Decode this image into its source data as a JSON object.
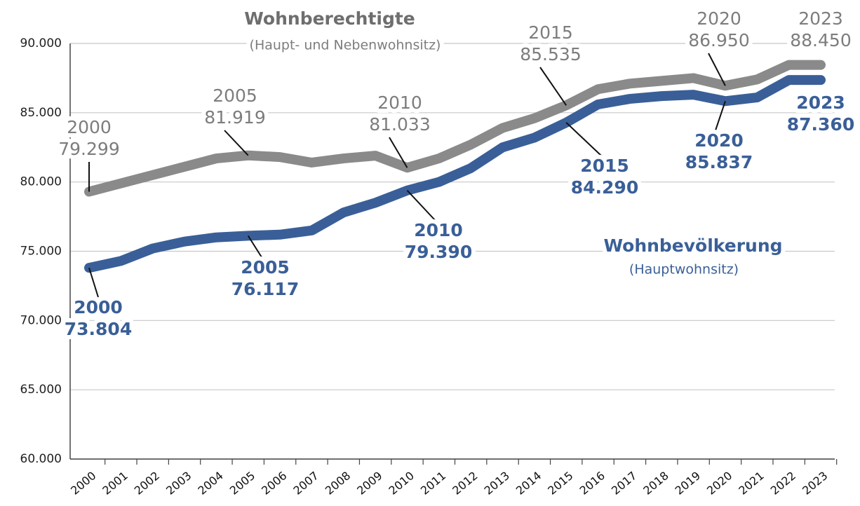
{
  "chart_data": {
    "type": "line",
    "categories": [
      "2000",
      "2001",
      "2002",
      "2003",
      "2004",
      "2005",
      "2006",
      "2007",
      "2008",
      "2009",
      "2010",
      "2011",
      "2012",
      "2013",
      "2014",
      "2015",
      "2016",
      "2017",
      "2018",
      "2019",
      "2020",
      "2021",
      "2022",
      "2023"
    ],
    "series": [
      {
        "name": "Wohnberechtigte",
        "subtitle": "(Haupt- und Nebenwohnsitz)",
        "color": "#8a8a8a",
        "values": [
          79299,
          79900,
          80500,
          81100,
          81700,
          81919,
          81800,
          81400,
          81700,
          81900,
          81033,
          81700,
          82700,
          83900,
          84600,
          85535,
          86700,
          87100,
          87300,
          87500,
          86950,
          87400,
          88450,
          88450
        ],
        "value_labels": [
          "79.299",
          null,
          null,
          null,
          null,
          "81.919",
          null,
          null,
          null,
          null,
          "81.033",
          null,
          null,
          null,
          null,
          "85.535",
          null,
          null,
          null,
          null,
          "86.950",
          null,
          null,
          "88.450"
        ]
      },
      {
        "name": "Wohnbevölkerung",
        "subtitle": "(Hauptwohnsitz)",
        "color": "#3a5f98",
        "values": [
          73804,
          74300,
          75200,
          75700,
          76000,
          76117,
          76200,
          76500,
          77800,
          78500,
          79390,
          80000,
          81000,
          82500,
          83200,
          84290,
          85600,
          86000,
          86200,
          86300,
          85837,
          86100,
          87360,
          87360
        ],
        "value_labels": [
          "73.804",
          null,
          null,
          null,
          null,
          "76.117",
          null,
          null,
          null,
          null,
          "79.390",
          null,
          null,
          null,
          null,
          "84.290",
          null,
          null,
          null,
          null,
          "85.837",
          null,
          null,
          "87.360"
        ]
      }
    ],
    "ylim": [
      60000,
      90000
    ],
    "yticks": [
      {
        "value": 60000,
        "label": "60.000"
      },
      {
        "value": 65000,
        "label": "65.000"
      },
      {
        "value": 70000,
        "label": "70.000"
      },
      {
        "value": 75000,
        "label": "75.000"
      },
      {
        "value": 80000,
        "label": "80.000"
      },
      {
        "value": 85000,
        "label": "85.000"
      },
      {
        "value": 90000,
        "label": "90.000"
      }
    ],
    "grid": true
  }
}
